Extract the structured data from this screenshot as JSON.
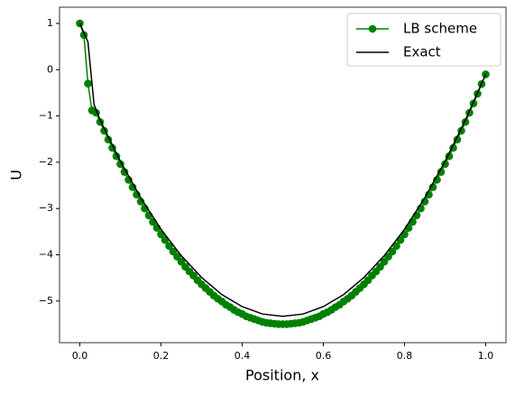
{
  "chart_data": {
    "type": "line",
    "xlabel": "Position, x",
    "ylabel": "U",
    "xlim": [
      -0.05,
      1.05
    ],
    "ylim": [
      -5.9,
      1.35
    ],
    "xticks": [
      {
        "value": 0,
        "label": "0.0"
      },
      {
        "value": 0.2,
        "label": "0.2"
      },
      {
        "value": 0.4,
        "label": "0.4"
      },
      {
        "value": 0.6,
        "label": "0.6"
      },
      {
        "value": 0.8,
        "label": "0.8"
      },
      {
        "value": 1,
        "label": "1.0"
      }
    ],
    "yticks": [
      1,
      0,
      {
        "value": -1,
        "label": "−1"
      },
      {
        "value": -2,
        "label": "−2"
      },
      {
        "value": -3,
        "label": "−3"
      },
      {
        "value": -4,
        "label": "−4"
      },
      {
        "value": -5,
        "label": "−5"
      }
    ],
    "legend": "upper right",
    "series": [
      {
        "name": "LB scheme",
        "color": "#008000",
        "marker": true,
        "x": [
          0,
          0.01,
          0.02,
          0.03,
          0.04,
          0.05,
          0.06,
          0.07,
          0.08,
          0.09,
          0.1,
          0.11,
          0.12,
          0.13,
          0.14,
          0.15,
          0.16,
          0.17,
          0.18,
          0.19,
          0.2,
          0.21,
          0.22,
          0.23,
          0.24,
          0.25,
          0.26,
          0.27,
          0.28,
          0.29,
          0.3,
          0.31,
          0.32,
          0.33,
          0.34,
          0.35,
          0.36,
          0.37,
          0.38,
          0.39,
          0.4,
          0.41,
          0.42,
          0.43,
          0.44,
          0.45,
          0.46,
          0.47,
          0.48,
          0.49,
          0.5,
          0.51,
          0.52,
          0.53,
          0.54,
          0.55,
          0.56,
          0.57,
          0.58,
          0.59,
          0.6,
          0.61,
          0.62,
          0.63,
          0.64,
          0.65,
          0.66,
          0.67,
          0.68,
          0.69,
          0.7,
          0.71,
          0.72,
          0.73,
          0.74,
          0.75,
          0.76,
          0.77,
          0.78,
          0.79,
          0.8,
          0.81,
          0.82,
          0.83,
          0.84,
          0.85,
          0.86,
          0.87,
          0.88,
          0.89,
          0.9,
          0.91,
          0.92,
          0.93,
          0.94,
          0.95,
          0.96,
          0.97,
          0.98,
          0.99,
          1
        ],
        "values": [
          1,
          0.75,
          -0.3,
          -0.88,
          -0.93,
          -1.13,
          -1.32,
          -1.51,
          -1.69,
          -1.87,
          -2.04,
          -2.21,
          -2.38,
          -2.54,
          -2.7,
          -2.85,
          -3,
          -3.15,
          -3.29,
          -3.42,
          -3.56,
          -3.68,
          -3.81,
          -3.93,
          -4.04,
          -4.15,
          -4.26,
          -4.36,
          -4.45,
          -4.55,
          -4.64,
          -4.72,
          -4.8,
          -4.88,
          -4.95,
          -5.01,
          -5.08,
          -5.13,
          -5.19,
          -5.24,
          -5.28,
          -5.33,
          -5.36,
          -5.39,
          -5.42,
          -5.45,
          -5.47,
          -5.48,
          -5.49,
          -5.5,
          -5.5,
          -5.5,
          -5.49,
          -5.48,
          -5.47,
          -5.45,
          -5.42,
          -5.39,
          -5.36,
          -5.33,
          -5.28,
          -5.24,
          -5.19,
          -5.13,
          -5.08,
          -5.01,
          -4.95,
          -4.88,
          -4.8,
          -4.72,
          -4.64,
          -4.55,
          -4.45,
          -4.36,
          -4.26,
          -4.15,
          -4.04,
          -3.93,
          -3.81,
          -3.68,
          -3.56,
          -3.42,
          -3.29,
          -3.15,
          -3,
          -2.85,
          -2.7,
          -2.54,
          -2.38,
          -2.21,
          -2.04,
          -1.87,
          -1.69,
          -1.51,
          -1.32,
          -1.13,
          -0.93,
          -0.73,
          -0.52,
          -0.31,
          -0.1
        ]
      },
      {
        "name": "Exact",
        "color": "#000000",
        "marker": false,
        "x": [
          0,
          0.02,
          0.035,
          0.05,
          0.1,
          0.15,
          0.2,
          0.25,
          0.3,
          0.35,
          0.4,
          0.45,
          0.5,
          0.55,
          0.6,
          0.65,
          0.7,
          0.75,
          0.8,
          0.85,
          0.9,
          0.95,
          1
        ],
        "values": [
          1,
          0.6,
          -0.75,
          -1.09,
          -1.98,
          -2.77,
          -3.45,
          -4.02,
          -4.49,
          -4.86,
          -5.12,
          -5.28,
          -5.33,
          -5.28,
          -5.12,
          -4.86,
          -4.49,
          -4.02,
          -3.45,
          -2.77,
          -1.98,
          -1.09,
          -0.1
        ]
      }
    ]
  }
}
